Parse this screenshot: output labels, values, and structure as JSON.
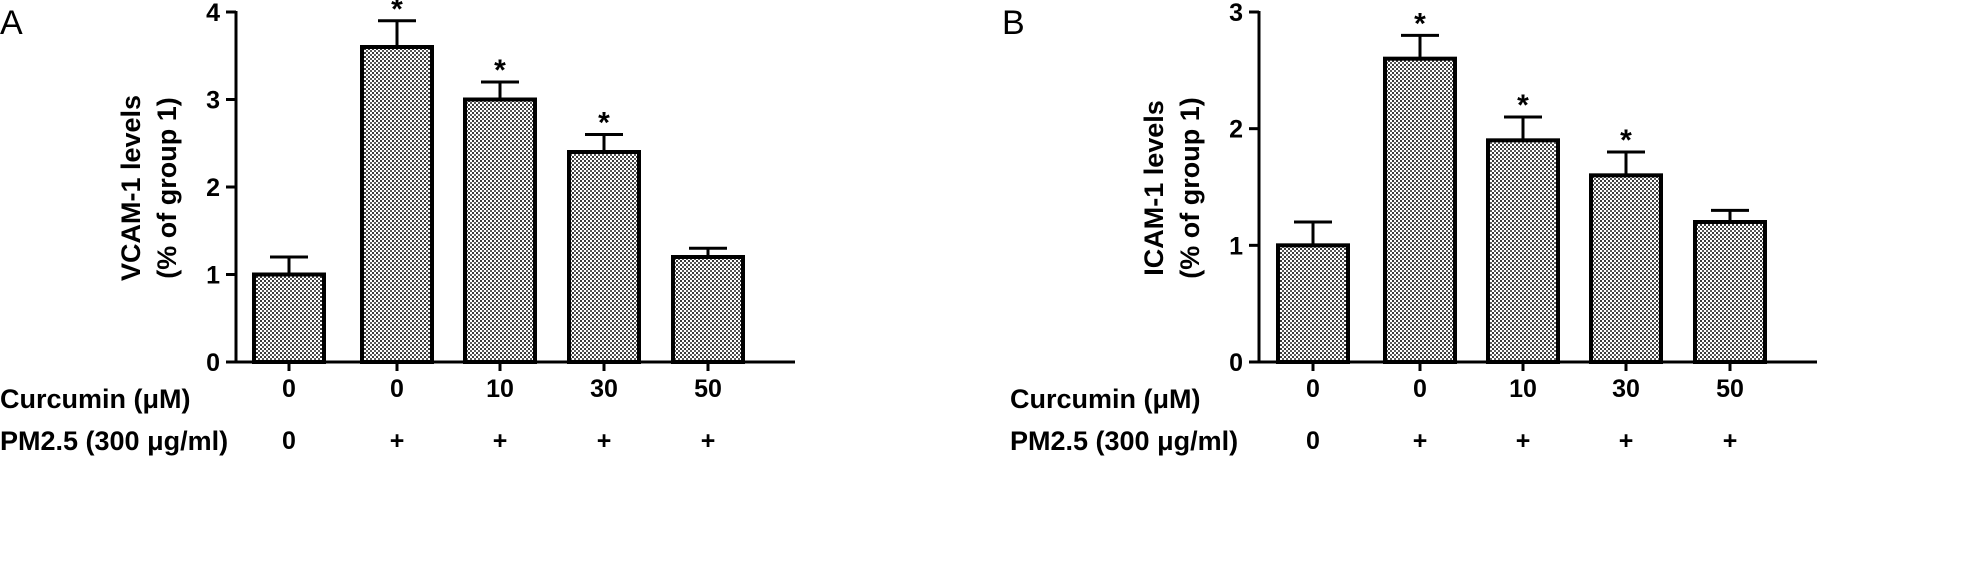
{
  "chart_data": [
    {
      "panel": "A",
      "type": "bar",
      "ylabel_line1": "VCAM-1 levels",
      "ylabel_line2": "(% of group 1)",
      "ylim": [
        0,
        4
      ],
      "yticks": [
        "0",
        "1",
        "2",
        "3",
        "4"
      ],
      "row_labels": [
        "Curcumin (μM)",
        "PM2.5 (300 μg/ml)"
      ],
      "curcumin": [
        "0",
        "0",
        "10",
        "30",
        "50"
      ],
      "pm25": [
        "0",
        "+",
        "+",
        "+",
        "+"
      ],
      "values": [
        1.0,
        3.6,
        3.0,
        2.4,
        1.2
      ],
      "errors": [
        0.2,
        0.3,
        0.2,
        0.2,
        0.1
      ],
      "significance": [
        "",
        "*",
        "*",
        "*",
        ""
      ]
    },
    {
      "panel": "B",
      "type": "bar",
      "ylabel_line1": "ICAM-1 levels",
      "ylabel_line2": "(% of group 1)",
      "ylim": [
        0,
        3
      ],
      "yticks": [
        "0",
        "1",
        "2",
        "3"
      ],
      "row_labels": [
        "Curcumin (μM)",
        "PM2.5 (300 μg/ml)"
      ],
      "curcumin": [
        "0",
        "0",
        "10",
        "30",
        "50"
      ],
      "pm25": [
        "0",
        "+",
        "+",
        "+",
        "+"
      ],
      "values": [
        1.0,
        2.6,
        1.9,
        1.6,
        1.2
      ],
      "errors": [
        0.2,
        0.2,
        0.2,
        0.2,
        0.1
      ],
      "significance": [
        "",
        "*",
        "*",
        "*",
        ""
      ]
    }
  ],
  "style": {
    "bar_fill": "#8c8c8c",
    "bar_stroke": "#000000",
    "axis_color": "#000000"
  }
}
